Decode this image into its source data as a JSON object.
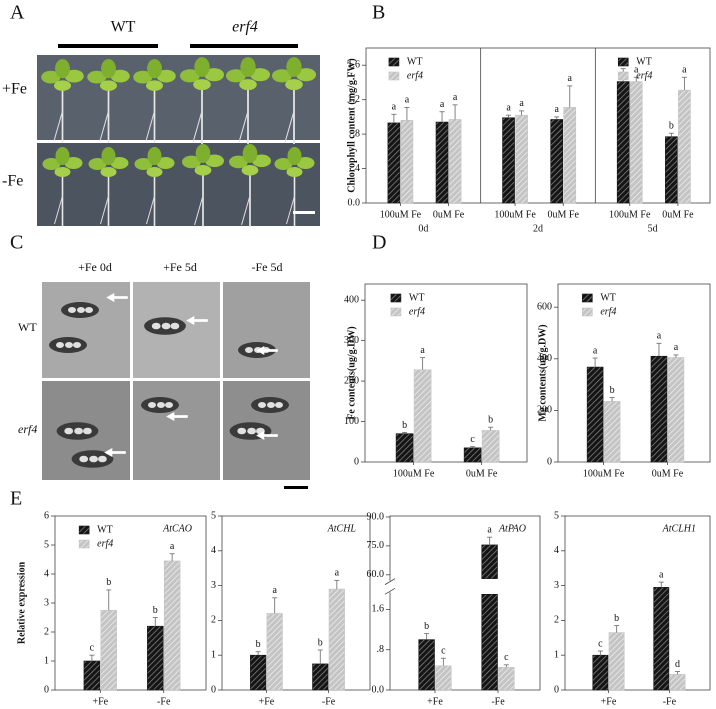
{
  "panel_labels": [
    "A",
    "B",
    "C",
    "D",
    "E"
  ],
  "panel_a": {
    "columns": [
      "WT",
      "erf4"
    ],
    "rows": [
      "+Fe",
      "-Fe"
    ]
  },
  "panel_c": {
    "columns": [
      "+Fe 0d",
      "+Fe 5d",
      "-Fe 5d"
    ],
    "rows": [
      "WT",
      "erf4"
    ]
  },
  "chart_data": [
    {
      "type": "bar",
      "ylabel": "Chlorophyll content (mg/g.FW)",
      "ylim": [
        0,
        1.8
      ],
      "yticks": [
        {
          "value": 0,
          "label": "0.0"
        },
        {
          "value": 0.4,
          "label": ".4"
        },
        {
          "value": 0.8,
          "label": ".8"
        },
        1.2,
        1.6
      ],
      "categories": [
        "100uM Fe",
        "0uM Fe"
      ],
      "series": [
        {
          "name": "WT",
          "color": "#151515",
          "hatch": "#8a8a8a",
          "italic": false
        },
        {
          "name": "erf4",
          "color": "#c4c4c4",
          "hatch": "#f2f2f2",
          "italic": true
        }
      ],
      "facets": [
        {
          "label": "0d",
          "legend": true,
          "values": [
            [
              0.93,
              0.94
            ],
            [
              0.96,
              0.97
            ]
          ],
          "errors": [
            [
              0.1,
              0.12
            ],
            [
              0.15,
              0.17
            ]
          ],
          "letters": [
            [
              "a",
              "a"
            ],
            [
              "a",
              "a"
            ]
          ]
        },
        {
          "label": "2d",
          "legend": false,
          "values": [
            [
              0.99,
              0.97
            ],
            [
              1.02,
              1.11
            ]
          ],
          "errors": [
            [
              0.03,
              0.03
            ],
            [
              0.05,
              0.25
            ]
          ],
          "letters": [
            [
              "a",
              "a"
            ],
            [
              "a",
              "a"
            ]
          ]
        },
        {
          "label": "5d",
          "legend": true,
          "values": [
            [
              1.41,
              0.77
            ],
            [
              1.41,
              1.31
            ]
          ],
          "errors": [
            [
              0.15,
              0.04
            ],
            [
              0.05,
              0.15
            ]
          ],
          "letters": [
            [
              "a",
              "b"
            ],
            [
              "a",
              "a"
            ]
          ]
        }
      ]
    },
    {
      "type": "bar",
      "ylabel": "Fe contents(ug/g.DW)",
      "ylim": [
        0,
        440
      ],
      "yticks": [
        0,
        100,
        200,
        300,
        400
      ],
      "categories": [
        "100uM Fe",
        "0uM Fe"
      ],
      "series": [
        {
          "name": "WT",
          "color": "#151515",
          "hatch": "#8a8a8a",
          "italic": false
        },
        {
          "name": "erf4",
          "color": "#c4c4c4",
          "hatch": "#f2f2f2",
          "italic": true
        }
      ],
      "facets": [
        {
          "legend": true,
          "values": [
            [
              70,
              35
            ],
            [
              228,
              78
            ]
          ],
          "errors": [
            [
              3,
              3
            ],
            [
              30,
              8
            ]
          ],
          "letters": [
            [
              "b",
              "c"
            ],
            [
              "a",
              "b"
            ]
          ]
        }
      ]
    },
    {
      "type": "bar",
      "ylabel": "Mg contents(ug/g.DW)",
      "ylim": [
        0,
        690
      ],
      "yticks": [
        0,
        200,
        400,
        600
      ],
      "categories": [
        "100uM Fe",
        "0uM Fe"
      ],
      "series": [
        {
          "name": "WT",
          "color": "#151515",
          "hatch": "#8a8a8a",
          "italic": false
        },
        {
          "name": "erf4",
          "color": "#c4c4c4",
          "hatch": "#f2f2f2",
          "italic": true
        }
      ],
      "facets": [
        {
          "legend": true,
          "values": [
            [
              368,
              410
            ],
            [
              235,
              405
            ]
          ],
          "errors": [
            [
              35,
              50
            ],
            [
              15,
              10
            ]
          ],
          "letters": [
            [
              "a",
              "a"
            ],
            [
              "b",
              "a"
            ]
          ]
        }
      ]
    },
    {
      "type": "bar",
      "ylabel": "Relative expression",
      "title": "AtCAO",
      "ylim": [
        0,
        6
      ],
      "yticks": [
        0,
        1,
        2,
        3,
        4,
        5,
        6
      ],
      "categories": [
        "+Fe",
        "-Fe"
      ],
      "series": [
        {
          "name": "WT",
          "color": "#151515",
          "hatch": "#8a8a8a",
          "italic": false
        },
        {
          "name": "erf4",
          "color": "#c4c4c4",
          "hatch": "#f2f2f2",
          "italic": true
        }
      ],
      "facets": [
        {
          "legend": true,
          "values": [
            [
              1.0,
              2.2
            ],
            [
              2.75,
              4.45
            ]
          ],
          "errors": [
            [
              0.2,
              0.3
            ],
            [
              0.7,
              0.25
            ]
          ],
          "letters": [
            [
              "c",
              "b"
            ],
            [
              "b",
              "a"
            ]
          ]
        }
      ]
    },
    {
      "type": "bar",
      "title": "AtCHL",
      "ylim": [
        0,
        5
      ],
      "yticks": [
        0,
        1,
        2,
        3,
        4,
        5
      ],
      "categories": [
        "+Fe",
        "-Fe"
      ],
      "series": [
        {
          "name": "WT",
          "color": "#151515",
          "hatch": "#8a8a8a",
          "italic": false
        },
        {
          "name": "erf4",
          "color": "#c4c4c4",
          "hatch": "#f2f2f2",
          "italic": true
        }
      ],
      "facets": [
        {
          "legend": false,
          "values": [
            [
              1.0,
              0.75
            ],
            [
              2.2,
              2.9
            ]
          ],
          "errors": [
            [
              0.1,
              0.4
            ],
            [
              0.45,
              0.25
            ]
          ],
          "letters": [
            [
              "b",
              "b"
            ],
            [
              "a",
              "a"
            ]
          ]
        }
      ]
    },
    {
      "type": "bar",
      "title": "AtPAO",
      "ylim": [
        0,
        90.5
      ],
      "break": [
        1.9,
        58
      ],
      "yticks": [
        {
          "value": 0,
          "label": "0.0"
        },
        {
          "value": 0.8,
          "label": ".8"
        },
        1.6,
        {
          "value": 60,
          "label": "60.0"
        },
        {
          "value": 75,
          "label": "75.0"
        },
        {
          "value": 90,
          "label": "90.0"
        }
      ],
      "categories": [
        "+Fe",
        "-Fe"
      ],
      "series": [
        {
          "name": "WT",
          "color": "#151515",
          "hatch": "#8a8a8a",
          "italic": false
        },
        {
          "name": "erf4",
          "color": "#c4c4c4",
          "hatch": "#f2f2f2",
          "italic": true
        }
      ],
      "facets": [
        {
          "legend": false,
          "values": [
            [
              1.0,
              75.5
            ],
            [
              0.48,
              0.45
            ]
          ],
          "errors": [
            [
              0.12,
              4
            ],
            [
              0.15,
              0.05
            ]
          ],
          "letters": [
            [
              "b",
              "a"
            ],
            [
              "c",
              "c"
            ]
          ]
        }
      ]
    },
    {
      "type": "bar",
      "title": "AtCLH1",
      "ylim": [
        0,
        5
      ],
      "yticks": [
        0,
        1,
        2,
        3,
        4,
        5
      ],
      "categories": [
        "+Fe",
        "-Fe"
      ],
      "series": [
        {
          "name": "WT",
          "color": "#151515",
          "hatch": "#8a8a8a",
          "italic": false
        },
        {
          "name": "erf4",
          "color": "#c4c4c4",
          "hatch": "#f2f2f2",
          "italic": true
        }
      ],
      "facets": [
        {
          "legend": false,
          "values": [
            [
              1.0,
              2.95
            ],
            [
              1.65,
              0.45
            ]
          ],
          "errors": [
            [
              0.12,
              0.15
            ],
            [
              0.2,
              0.08
            ]
          ],
          "letters": [
            [
              "c",
              "a"
            ],
            [
              "b",
              "d"
            ]
          ]
        }
      ]
    }
  ]
}
